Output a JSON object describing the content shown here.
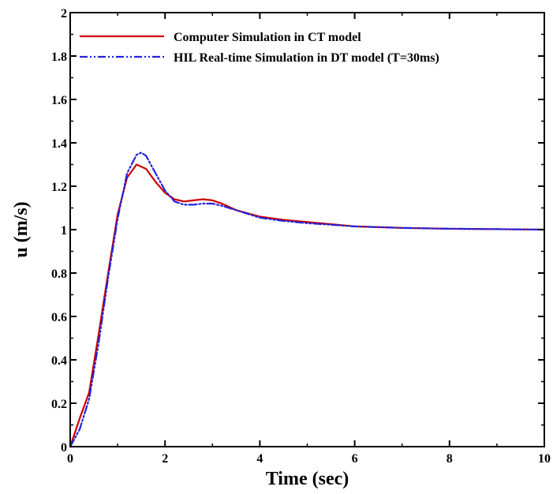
{
  "chart_data": {
    "type": "line",
    "title": "",
    "xlabel": "Time (sec)",
    "ylabel": "u (m/s)",
    "xlim": [
      0,
      10
    ],
    "ylim": [
      0,
      2
    ],
    "xticks": [
      0,
      2,
      4,
      6,
      8,
      10
    ],
    "xtick_labels": [
      "0",
      "2",
      "4",
      "6",
      "8",
      "10"
    ],
    "yticks": [
      0,
      0.2,
      0.4,
      0.6,
      0.8,
      1,
      1.2,
      1.4,
      1.6,
      1.8,
      2
    ],
    "ytick_labels": [
      "0",
      "0.2",
      "0.4",
      "0.6",
      "0.8",
      "1",
      "1.2",
      "1.4",
      "1.6",
      "1.8",
      "2"
    ],
    "grid": false,
    "legend_position": "top-left",
    "series": [
      {
        "name": "Computer Simulation in CT model",
        "color": "#cc0000",
        "style": "solid",
        "x": [
          0,
          0.2,
          0.4,
          0.6,
          0.8,
          1.0,
          1.2,
          1.4,
          1.6,
          1.8,
          2.0,
          2.2,
          2.4,
          2.6,
          2.8,
          3.0,
          3.2,
          3.5,
          4.0,
          4.5,
          5.0,
          6.0,
          7.0,
          8.0,
          9.0,
          10.0
        ],
        "y": [
          0,
          0.13,
          0.25,
          0.52,
          0.8,
          1.07,
          1.24,
          1.3,
          1.28,
          1.22,
          1.17,
          1.14,
          1.13,
          1.135,
          1.14,
          1.135,
          1.12,
          1.09,
          1.06,
          1.045,
          1.035,
          1.015,
          1.008,
          1.004,
          1.002,
          1.0
        ]
      },
      {
        "name": "HIL Real-time Simulation in DT model (T=30ms)",
        "color": "#2222dd",
        "style": "dashdotdot",
        "x": [
          0,
          0.2,
          0.4,
          0.6,
          0.8,
          1.0,
          1.2,
          1.4,
          1.5,
          1.6,
          1.8,
          2.0,
          2.2,
          2.4,
          2.6,
          2.8,
          3.0,
          3.2,
          3.5,
          4.0,
          4.5,
          5.0,
          6.0,
          7.0,
          8.0,
          9.0,
          10.0
        ],
        "y": [
          0,
          0.08,
          0.22,
          0.48,
          0.78,
          1.05,
          1.26,
          1.345,
          1.355,
          1.34,
          1.26,
          1.18,
          1.13,
          1.115,
          1.115,
          1.12,
          1.12,
          1.11,
          1.09,
          1.055,
          1.04,
          1.03,
          1.015,
          1.008,
          1.004,
          1.002,
          1.0
        ]
      }
    ]
  }
}
